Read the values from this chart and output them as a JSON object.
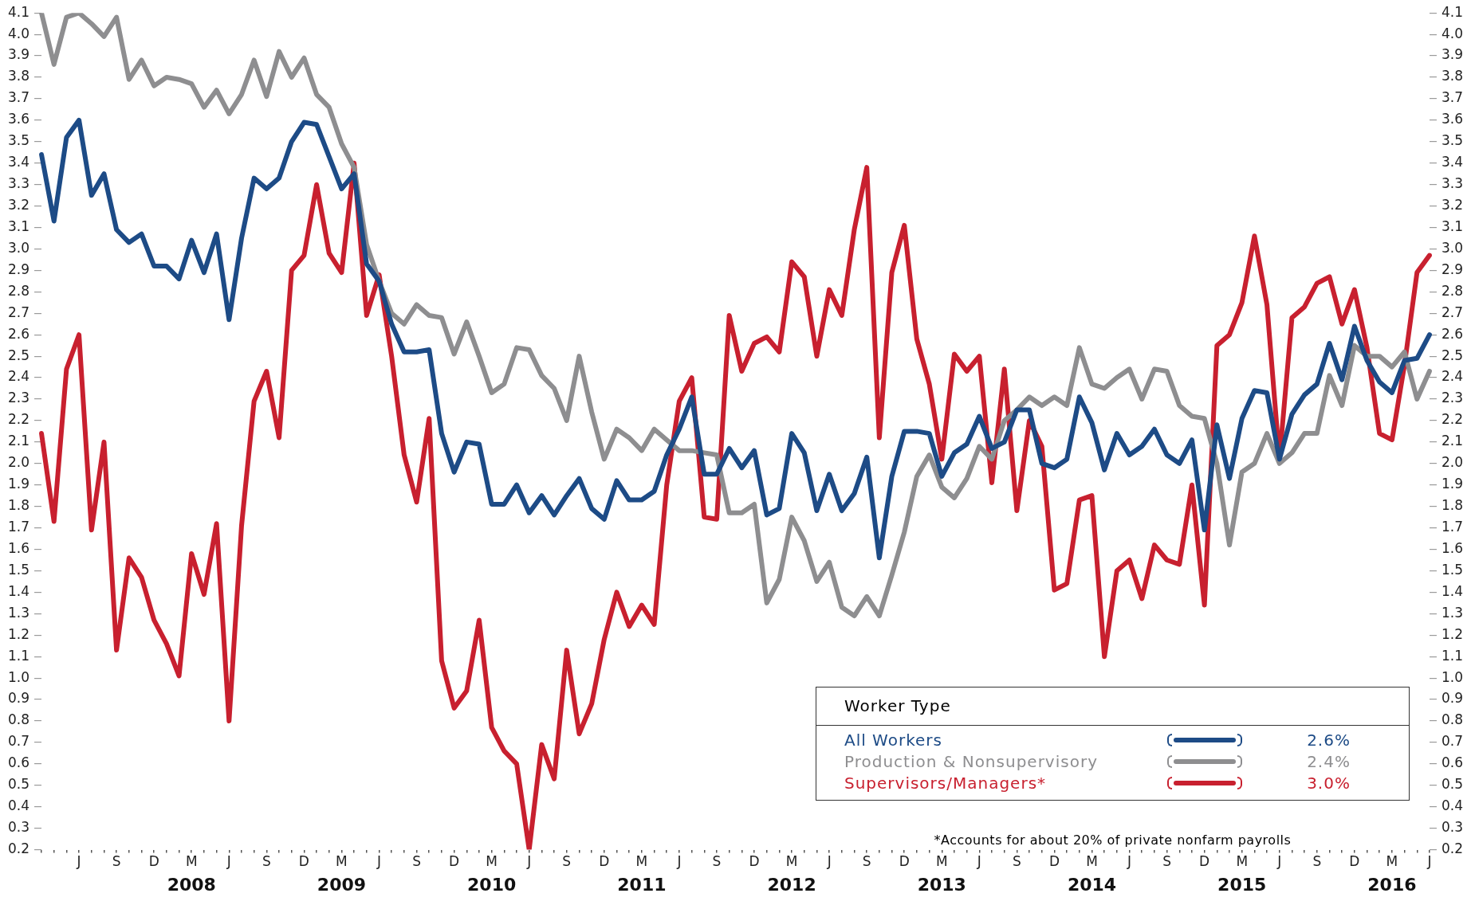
{
  "chart_data": {
    "type": "line",
    "legend": "bottom right",
    "legend_title": "Worker Type",
    "line_style": "solid",
    "categories": [
      null,
      null,
      null,
      "J",
      null,
      null,
      "S",
      null,
      null,
      "D",
      null,
      null,
      "M\n2008",
      null,
      null,
      "J",
      null,
      null,
      "S",
      null,
      null,
      "D",
      null,
      null,
      "M\n2009",
      null,
      null,
      "J",
      null,
      null,
      "S",
      null,
      null,
      "D",
      null,
      null,
      "M\n2010",
      null,
      null,
      "J",
      null,
      null,
      "S",
      null,
      null,
      "D",
      null,
      null,
      "M\n2011",
      null,
      null,
      "J",
      null,
      null,
      "S",
      null,
      null,
      "D",
      null,
      null,
      "M\n2012",
      null,
      null,
      "J",
      null,
      null,
      "S",
      null,
      null,
      "D",
      null,
      null,
      "M\n2013",
      null,
      null,
      "J",
      null,
      null,
      "S",
      null,
      null,
      "D",
      null,
      null,
      "M\n2014",
      null,
      null,
      "J",
      null,
      null,
      "S",
      null,
      null,
      "D",
      null,
      null,
      "M\n2015",
      null,
      null,
      "J",
      null,
      null,
      "S",
      null,
      null,
      "D",
      null,
      null,
      "M\n2016",
      null,
      null,
      "J"
    ],
    "ylim": [
      0.2,
      4.1
    ],
    "yticks": [
      0.2,
      0.3,
      0.4,
      0.5,
      0.6,
      0.7,
      0.8,
      0.9,
      {
        "value": 1,
        "label": "1.0"
      },
      1.1,
      1.2,
      1.3,
      1.4,
      1.5,
      1.6,
      1.7,
      1.8,
      1.9,
      {
        "value": 2,
        "label": "2.0"
      },
      2.1,
      2.2,
      2.3,
      2.4,
      2.5,
      2.6,
      2.7,
      2.8,
      2.9,
      {
        "value": 3,
        "label": "3.0"
      },
      3.1,
      3.2,
      3.3,
      3.4,
      3.5,
      3.6,
      3.7,
      3.8,
      3.9,
      {
        "value": 4,
        "label": "4.0"
      },
      4.1
    ],
    "y2lim": [
      0.2,
      4.1
    ],
    "y2ticks": [
      0.2,
      0.3,
      0.4,
      0.5,
      0.6,
      0.7,
      0.8,
      0.9,
      {
        "value": 1,
        "label": "1.0"
      },
      1.1,
      1.2,
      1.3,
      1.4,
      1.5,
      1.6,
      1.7,
      1.8,
      1.9,
      {
        "value": 2,
        "label": "2.0"
      },
      2.1,
      2.2,
      2.3,
      2.4,
      2.5,
      2.6,
      2.7,
      2.8,
      2.9,
      {
        "value": 3,
        "label": "3.0"
      },
      3.1,
      3.2,
      3.3,
      3.4,
      3.5,
      3.6,
      3.7,
      3.8,
      3.9,
      {
        "value": 4,
        "label": "4.0"
      },
      4.1
    ],
    "series": [
      {
        "name": "All Workers",
        "color": "#1d4b86",
        "values": [
          3.44,
          3.13,
          3.52,
          3.6,
          3.25,
          3.35,
          3.09,
          3.03,
          3.07,
          2.92,
          2.92,
          2.86,
          3.04,
          2.89,
          3.07,
          2.67,
          3.05,
          3.33,
          3.28,
          3.33,
          3.5,
          3.59,
          3.58,
          3.43,
          3.28,
          3.35,
          2.93,
          2.85,
          2.65,
          2.52,
          2.52,
          2.53,
          2.14,
          1.96,
          2.1,
          2.09,
          1.81,
          1.81,
          1.9,
          1.77,
          1.85,
          1.76,
          1.85,
          1.93,
          1.79,
          1.74,
          1.92,
          1.83,
          1.83,
          1.87,
          2.04,
          2.16,
          2.31,
          1.95,
          1.95,
          2.07,
          1.98,
          2.06,
          1.76,
          1.79,
          2.14,
          2.05,
          1.78,
          1.95,
          1.78,
          1.86,
          2.03,
          1.56,
          1.94,
          2.15,
          2.15,
          2.14,
          1.94,
          2.05,
          2.09,
          2.22,
          2.07,
          2.1,
          2.25,
          2.25,
          2.0,
          1.98,
          2.02,
          2.31,
          2.19,
          1.97,
          2.14,
          2.04,
          2.08,
          2.16,
          2.04,
          2.0,
          2.11,
          1.69,
          2.18,
          1.93,
          2.21,
          2.34,
          2.33,
          2.02,
          2.23,
          2.32,
          2.37,
          2.56,
          2.39,
          2.64,
          2.48,
          2.38,
          2.33,
          2.48,
          2.49,
          2.6
        ]
      },
      {
        "name": "Production  & Nonsupervisory",
        "color": "#8e8e90",
        "values": [
          4.1,
          3.86,
          4.08,
          4.1,
          4.05,
          3.99,
          4.08,
          3.79,
          3.88,
          3.76,
          3.8,
          3.79,
          3.77,
          3.66,
          3.74,
          3.63,
          3.72,
          3.88,
          3.71,
          3.92,
          3.8,
          3.89,
          3.72,
          3.66,
          3.49,
          3.38,
          3.02,
          2.85,
          2.7,
          2.65,
          2.74,
          2.69,
          2.68,
          2.51,
          2.66,
          2.5,
          2.33,
          2.37,
          2.54,
          2.53,
          2.41,
          2.35,
          2.2,
          2.5,
          2.24,
          2.02,
          2.16,
          2.12,
          2.06,
          2.16,
          2.11,
          2.06,
          2.06,
          2.05,
          2.04,
          1.77,
          1.77,
          1.81,
          1.35,
          1.46,
          1.75,
          1.64,
          1.45,
          1.54,
          1.33,
          1.29,
          1.38,
          1.29,
          1.48,
          1.68,
          1.94,
          2.04,
          1.89,
          1.84,
          1.93,
          2.08,
          2.02,
          2.2,
          2.25,
          2.31,
          2.27,
          2.31,
          2.27,
          2.54,
          2.37,
          2.35,
          2.4,
          2.44,
          2.3,
          2.44,
          2.43,
          2.27,
          2.22,
          2.21,
          2.0,
          1.62,
          1.96,
          2.0,
          2.14,
          2.0,
          2.05,
          2.14,
          2.14,
          2.41,
          2.27,
          2.55,
          2.5,
          2.5,
          2.45,
          2.52,
          2.3,
          2.43
        ]
      },
      {
        "name": "Supervisors/Managers*",
        "color": "#c8202f",
        "values": [
          2.14,
          1.73,
          2.44,
          2.6,
          1.69,
          2.1,
          1.13,
          1.56,
          1.47,
          1.27,
          1.16,
          1.01,
          1.58,
          1.39,
          1.72,
          0.8,
          1.71,
          2.29,
          2.43,
          2.12,
          2.9,
          2.97,
          3.3,
          2.98,
          2.89,
          3.4,
          2.69,
          2.88,
          2.5,
          2.04,
          1.82,
          2.21,
          1.08,
          0.86,
          0.94,
          1.27,
          0.77,
          0.66,
          0.6,
          0.2,
          0.69,
          0.53,
          1.13,
          0.74,
          0.88,
          1.18,
          1.4,
          1.24,
          1.34,
          1.25,
          1.9,
          2.29,
          2.4,
          1.75,
          1.74,
          2.69,
          2.43,
          2.56,
          2.59,
          2.52,
          2.94,
          2.87,
          2.5,
          2.81,
          2.69,
          3.09,
          3.38,
          2.12,
          2.89,
          3.11,
          2.58,
          2.37,
          2.02,
          2.51,
          2.43,
          2.5,
          1.91,
          2.44,
          1.78,
          2.2,
          2.08,
          1.41,
          1.44,
          1.83,
          1.85,
          1.1,
          1.5,
          1.55,
          1.37,
          1.62,
          1.55,
          1.53,
          1.9,
          1.34,
          2.55,
          2.6,
          2.75,
          3.06,
          2.74,
          2.02,
          2.68,
          2.73,
          2.84,
          2.87,
          2.65,
          2.81,
          2.54,
          2.14,
          2.11,
          2.46,
          2.89,
          2.97
        ]
      }
    ],
    "annotations": [
      "2.6%",
      "2.4%",
      "3.0%",
      "*Accounts for about 20% of private nonfarm payrolls"
    ]
  }
}
